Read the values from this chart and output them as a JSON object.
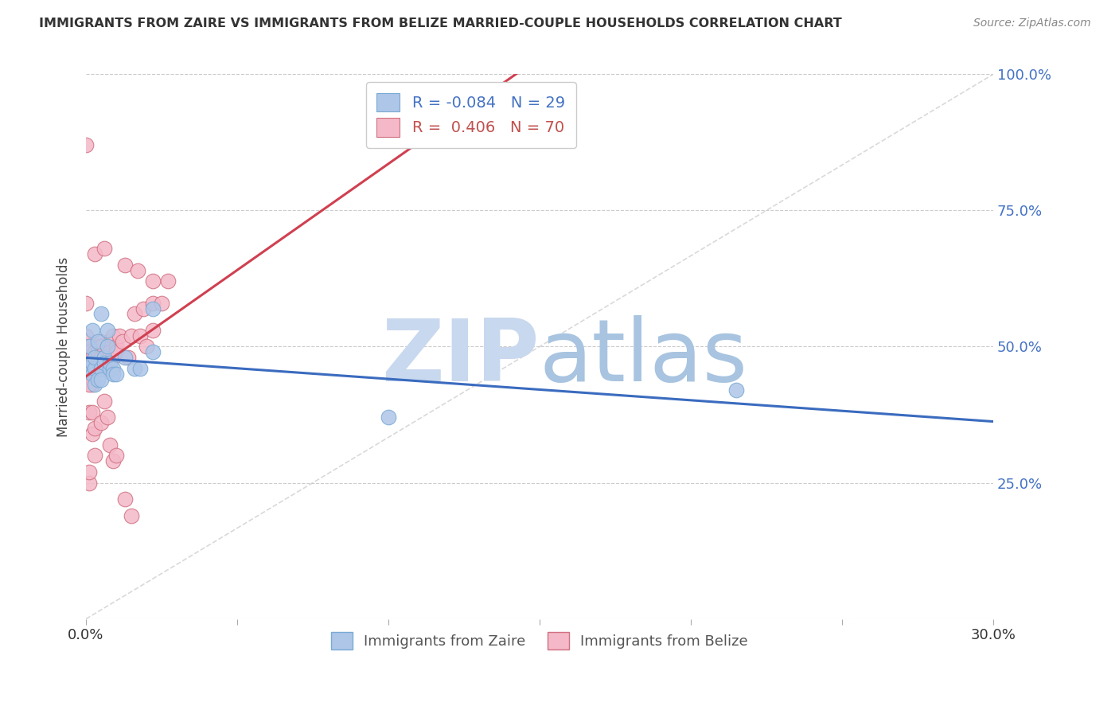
{
  "title": "IMMIGRANTS FROM ZAIRE VS IMMIGRANTS FROM BELIZE MARRIED-COUPLE HOUSEHOLDS CORRELATION CHART",
  "source": "Source: ZipAtlas.com",
  "ylabel": "Married-couple Households",
  "xlim": [
    0.0,
    0.3
  ],
  "ylim": [
    0.0,
    1.0
  ],
  "yticks": [
    0.0,
    0.25,
    0.5,
    0.75,
    1.0
  ],
  "ytick_labels": [
    "",
    "25.0%",
    "50.0%",
    "75.0%",
    "100.0%"
  ],
  "xtick_positions": [
    0.0,
    0.05,
    0.1,
    0.15,
    0.2,
    0.25,
    0.3
  ],
  "xtick_labels_show": [
    "0.0%",
    "",
    "",
    "",
    "",
    "",
    "30.0%"
  ],
  "legend_entries": [
    {
      "R": "-0.084",
      "N": "29"
    },
    {
      "R": "0.406",
      "N": "70"
    }
  ],
  "legend_text_color": [
    "#4472c4",
    "#c0504d"
  ],
  "watermark_zip_color": "#c8d8ee",
  "watermark_atlas_color": "#a8c4e0",
  "background_color": "#ffffff",
  "grid_color": "#cccccc",
  "zaire_scatter_color": "#aec6e8",
  "zaire_scatter_edge": "#7aaad4",
  "belize_scatter_color": "#f4b8c8",
  "belize_scatter_edge": "#d07080",
  "zaire_line_color": "#3a6bbf",
  "belize_line_color": "#d04050",
  "diagonal_line_color": "#d0d0d0",
  "zaire_x": [
    0.001,
    0.001,
    0.002,
    0.002,
    0.002,
    0.003,
    0.003,
    0.003,
    0.004,
    0.004,
    0.005,
    0.005,
    0.005,
    0.006,
    0.006,
    0.007,
    0.007,
    0.008,
    0.008,
    0.009,
    0.009,
    0.01,
    0.013,
    0.016,
    0.018,
    0.022,
    0.022,
    0.215,
    0.1
  ],
  "zaire_y": [
    0.46,
    0.5,
    0.45,
    0.47,
    0.53,
    0.46,
    0.48,
    0.43,
    0.44,
    0.51,
    0.46,
    0.44,
    0.56,
    0.48,
    0.47,
    0.5,
    0.53,
    0.46,
    0.47,
    0.46,
    0.45,
    0.45,
    0.48,
    0.46,
    0.46,
    0.57,
    0.49,
    0.42,
    0.37
  ],
  "belize_x": [
    0.0,
    0.0,
    0.001,
    0.001,
    0.001,
    0.001,
    0.002,
    0.002,
    0.002,
    0.002,
    0.002,
    0.002,
    0.003,
    0.003,
    0.003,
    0.003,
    0.004,
    0.004,
    0.004,
    0.004,
    0.005,
    0.005,
    0.005,
    0.006,
    0.006,
    0.006,
    0.006,
    0.007,
    0.007,
    0.008,
    0.008,
    0.009,
    0.009,
    0.01,
    0.01,
    0.011,
    0.012,
    0.013,
    0.014,
    0.015,
    0.016,
    0.017,
    0.018,
    0.019,
    0.02,
    0.022,
    0.022,
    0.022,
    0.025,
    0.027,
    0.0,
    0.001,
    0.001,
    0.002,
    0.002,
    0.003,
    0.003,
    0.005,
    0.006,
    0.007,
    0.008,
    0.009,
    0.01,
    0.013,
    0.015,
    0.0,
    0.001,
    0.001,
    0.003,
    0.006
  ],
  "belize_y": [
    0.48,
    0.52,
    0.5,
    0.49,
    0.47,
    0.46,
    0.48,
    0.47,
    0.46,
    0.45,
    0.44,
    0.43,
    0.49,
    0.48,
    0.47,
    0.46,
    0.5,
    0.49,
    0.48,
    0.47,
    0.51,
    0.5,
    0.48,
    0.49,
    0.48,
    0.47,
    0.46,
    0.5,
    0.48,
    0.51,
    0.49,
    0.52,
    0.48,
    0.5,
    0.49,
    0.52,
    0.51,
    0.65,
    0.48,
    0.52,
    0.56,
    0.64,
    0.52,
    0.57,
    0.5,
    0.62,
    0.58,
    0.53,
    0.58,
    0.62,
    0.58,
    0.43,
    0.38,
    0.38,
    0.34,
    0.35,
    0.3,
    0.36,
    0.4,
    0.37,
    0.32,
    0.29,
    0.3,
    0.22,
    0.19,
    0.87,
    0.25,
    0.27,
    0.67,
    0.68
  ]
}
